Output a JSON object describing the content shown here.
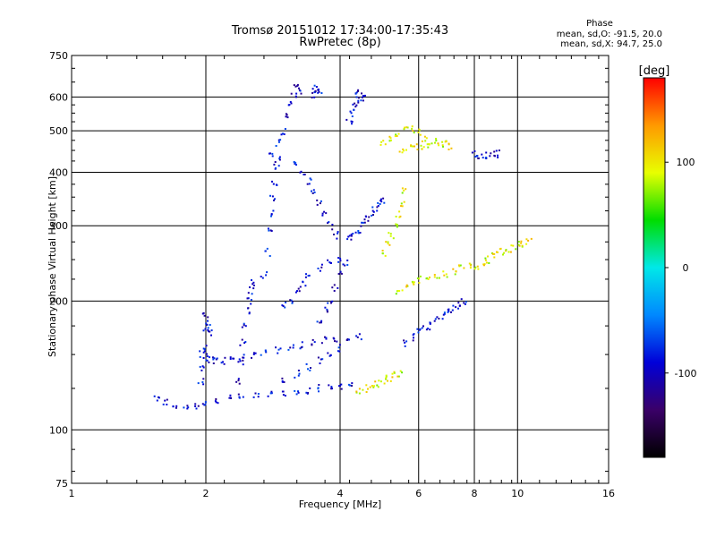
{
  "header": {
    "title_line1": "Tromsø 20151012 17:34:00-17:35:43",
    "title_line2": "RwPretec (8p)"
  },
  "phase_info": {
    "title": "Phase",
    "line_o": "mean, sd,O: -91.5, 20.0",
    "line_x": "mean, sd,X:  94.7, 25.0"
  },
  "chart_data": {
    "type": "scatter",
    "xlabel": "Frequency [MHz]",
    "ylabel": "Stationary phase Virtual Height [km]",
    "x_scale": "log",
    "y_scale": "log",
    "xlim": [
      1,
      16
    ],
    "ylim": [
      75,
      750
    ],
    "x_ticks": [
      1,
      2,
      4,
      6,
      8,
      10,
      16
    ],
    "x_tick_labels": [
      "1",
      "2",
      "4",
      "6",
      "8",
      "10",
      "16"
    ],
    "y_ticks": [
      75,
      100,
      200,
      300,
      400,
      500,
      600,
      750
    ],
    "y_tick_labels": [
      "75",
      "100",
      "200",
      "300",
      "400",
      "500",
      "600",
      "750"
    ],
    "grid": true,
    "colorbar": {
      "label": "[deg]",
      "range": [
        -180,
        180
      ],
      "ticks": [
        100,
        0,
        -100
      ],
      "tick_labels": [
        "100",
        "0",
        "-100"
      ],
      "colormap": [
        "#000000",
        "#3a0068",
        "#0000d8",
        "#0088ff",
        "#00e8e8",
        "#00dd00",
        "#e8ff00",
        "#ff9900",
        "#ff0000"
      ]
    },
    "series": [
      {
        "name": "O",
        "color_phase": -91.5,
        "traces": [
          {
            "f": [
              1.55,
              1.62,
              1.7,
              1.8,
              1.9,
              2.0,
              2.1,
              2.25,
              2.4,
              2.6,
              2.8,
              3.0,
              3.2,
              3.4,
              3.6,
              3.8,
              4.0,
              4.2
            ],
            "h": [
              118,
              116,
              114,
              113,
              114,
              116,
              117,
              118,
              119,
              120,
              121,
              122,
              123,
              124,
              125,
              126,
              127,
              128
            ]
          },
          {
            "f": [
              1.95,
              2.0,
              2.05,
              2.1,
              2.2,
              2.3,
              2.4,
              2.55,
              2.7,
              2.9,
              3.1,
              3.3,
              3.5,
              3.7,
              3.9
            ],
            "h": [
              150,
              148,
              146,
              145,
              145,
              146,
              148,
              150,
              152,
              154,
              156,
              158,
              160,
              162,
              164
            ]
          },
          {
            "f": [
              1.95,
              1.97,
              1.99,
              2.0,
              2.0,
              2.02,
              2.05
            ],
            "h": [
              130,
              140,
              155,
              170,
              185,
              178,
              168
            ]
          },
          {
            "f": [
              2.35,
              2.4,
              2.42,
              2.45,
              2.48,
              2.5,
              2.52,
              2.55
            ],
            "h": [
              130,
              145,
              160,
              175,
              190,
              200,
              212,
              220
            ]
          },
          {
            "f": [
              2.7,
              2.75,
              2.78,
              2.8,
              2.82,
              2.85,
              2.88,
              2.9
            ],
            "h": [
              230,
              260,
              290,
              320,
              350,
              380,
              410,
              430
            ]
          },
          {
            "f": [
              2.8,
              2.9,
              3.0,
              3.05,
              3.1,
              3.15,
              3.2,
              3.25
            ],
            "h": [
              440,
              470,
              500,
              540,
              580,
              610,
              630,
              620
            ]
          },
          {
            "f": [
              3.5,
              3.52,
              3.55,
              3.6
            ],
            "h": [
              610,
              625,
              630,
              615
            ]
          },
          {
            "f": [
              3.2,
              3.3,
              3.4,
              3.5,
              3.6,
              3.7,
              3.8,
              3.9
            ],
            "h": [
              420,
              400,
              380,
              360,
              340,
              320,
              300,
              285
            ]
          },
          {
            "f": [
              3.0,
              3.1,
              3.2,
              3.3,
              3.4,
              3.6,
              3.8,
              4.0
            ],
            "h": [
              195,
              200,
              210,
              220,
              230,
              240,
              245,
              248
            ]
          },
          {
            "f": [
              3.6,
              3.7,
              3.8,
              3.9,
              4.0,
              4.1
            ],
            "h": [
              180,
              190,
              200,
              215,
              230,
              245
            ]
          },
          {
            "f": [
              4.2,
              4.3,
              4.4,
              4.5,
              4.6,
              4.7,
              4.8,
              4.9,
              5.0
            ],
            "h": [
              280,
              285,
              290,
              300,
              310,
              320,
              330,
              340,
              345
            ]
          },
          {
            "f": [
              4.2,
              4.25,
              4.3,
              4.35,
              4.4,
              4.45,
              4.5
            ],
            "h": [
              530,
              550,
              570,
              590,
              605,
              615,
              600
            ]
          },
          {
            "f": [
              3.0,
              3.2,
              3.4,
              3.6,
              3.8,
              4.0,
              4.2,
              4.4
            ],
            "h": [
              130,
              135,
              140,
              145,
              150,
              155,
              160,
              165
            ]
          },
          {
            "f": [
              5.6,
              5.8,
              6.0,
              6.2,
              6.4,
              6.6,
              6.8,
              7.0,
              7.2,
              7.4,
              7.6
            ],
            "h": [
              160,
              165,
              170,
              172,
              175,
              180,
              185,
              190,
              192,
              195,
              200
            ]
          },
          {
            "f": [
              8.0,
              8.2,
              8.4,
              8.6,
              8.8,
              9.0
            ],
            "h": [
              440,
              438,
              436,
              438,
              440,
              442
            ]
          }
        ]
      },
      {
        "name": "X",
        "color_phase": 94.7,
        "traces": [
          {
            "f": [
              4.4,
              4.55,
              4.7,
              4.85,
              5.0,
              5.15,
              5.3,
              5.45
            ],
            "h": [
              124,
              125,
              126,
              128,
              130,
              132,
              134,
              136
            ]
          },
          {
            "f": [
              5.0,
              5.1,
              5.2,
              5.3,
              5.4,
              5.5,
              5.6
            ],
            "h": [
              260,
              270,
              285,
              300,
              320,
              340,
              360
            ]
          },
          {
            "f": [
              5.0,
              5.2,
              5.4,
              5.6,
              5.8,
              6.0,
              6.2
            ],
            "h": [
              470,
              480,
              490,
              500,
              505,
              495,
              480
            ]
          },
          {
            "f": [
              5.5,
              5.7,
              5.9,
              6.1,
              6.3,
              6.5,
              6.7,
              6.9,
              7.1
            ],
            "h": [
              450,
              455,
              460,
              462,
              465,
              470,
              468,
              465,
              460
            ]
          },
          {
            "f": [
              5.4,
              5.6,
              5.8,
              6.0,
              6.3,
              6.6,
              6.9,
              7.2,
              7.5,
              7.8,
              8.1,
              8.5
            ],
            "h": [
              210,
              215,
              220,
              225,
              228,
              230,
              232,
              235,
              238,
              240,
              242,
              245
            ]
          },
          {
            "f": [
              8.5,
              8.8,
              9.1,
              9.4,
              9.7,
              10.0,
              10.3,
              10.6
            ],
            "h": [
              250,
              255,
              260,
              262,
              265,
              270,
              272,
              275
            ]
          }
        ]
      }
    ]
  }
}
